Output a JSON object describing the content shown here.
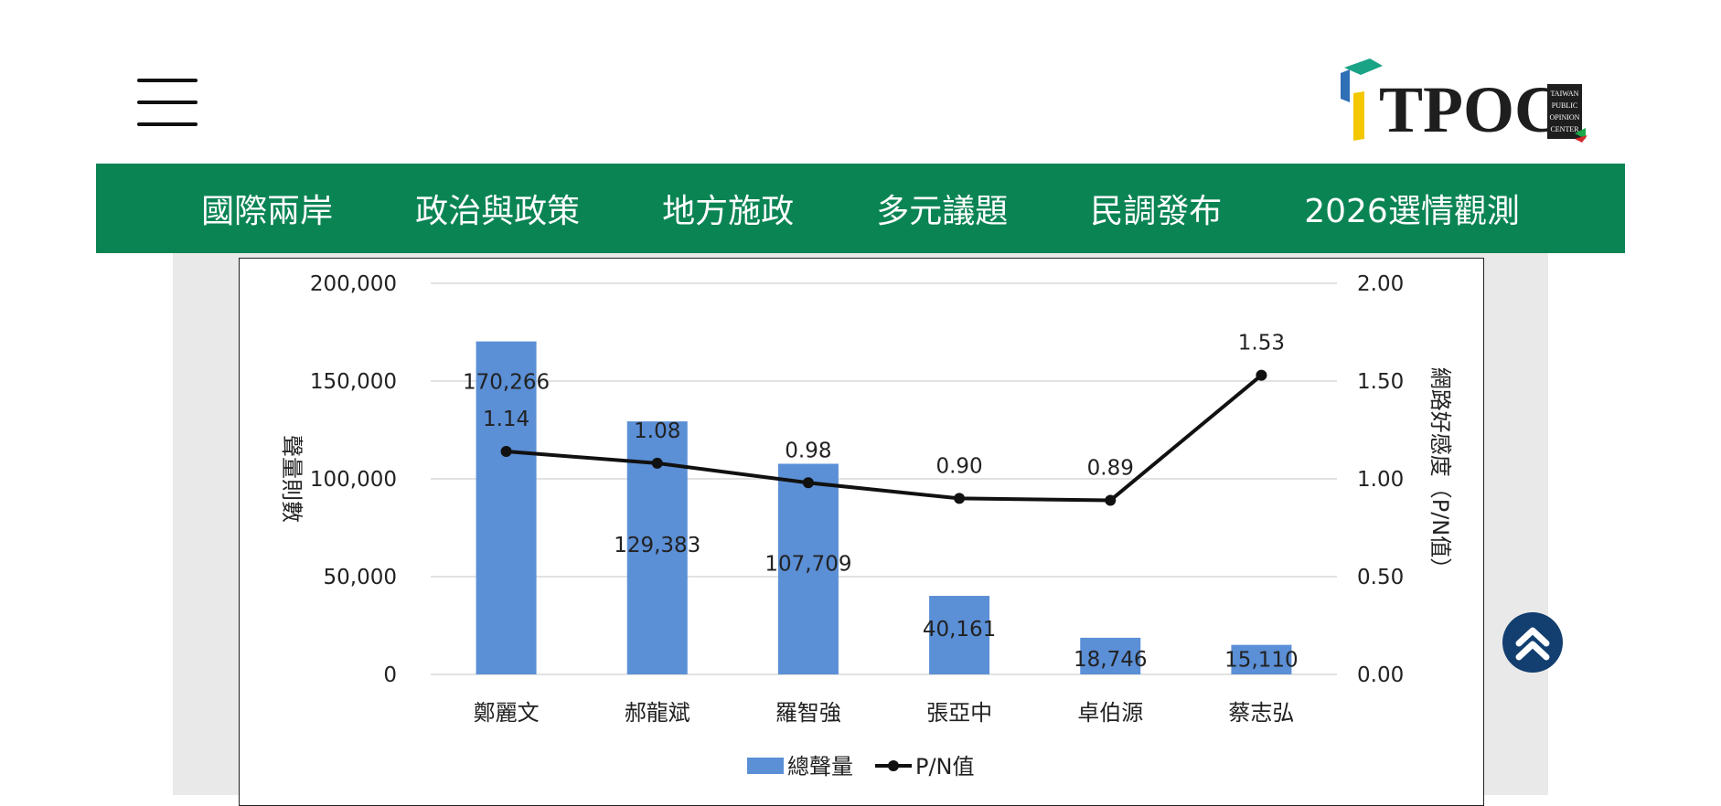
{
  "header": {
    "menu_icon": "hamburger-menu-icon",
    "logo": {
      "text": "TPOC",
      "sub": [
        "TAIWAN",
        "PUBLIC",
        "OPINION",
        "CENTER"
      ],
      "colors": {
        "teal": "#1aa385",
        "yellow": "#f3c800",
        "blue": "#2f6fb5",
        "green": "#1aa74a",
        "red": "#d4262d",
        "dark": "#1e1e1e"
      }
    }
  },
  "nav": {
    "background": "#0b8454",
    "items": [
      "國際兩岸",
      "政治與政策",
      "地方施政",
      "多元議題",
      "民調發布",
      "2026選情觀測"
    ]
  },
  "back_to_top_icon": "double-chevron-up-icon",
  "chart_data": {
    "type": "bar",
    "categories": [
      "鄭麗文",
      "郝龍斌",
      "羅智強",
      "張亞中",
      "卓伯源",
      "蔡志弘"
    ],
    "series": [
      {
        "name": "總聲量",
        "type": "bar",
        "axis": "left",
        "color": "#5b8fd6",
        "values": [
          170266,
          129383,
          107709,
          40161,
          18746,
          15110
        ],
        "labels": [
          "170,266",
          "129,383",
          "107,709",
          "40,161",
          "18,746",
          "15,110"
        ]
      },
      {
        "name": "P/N值",
        "type": "line",
        "axis": "right",
        "color": "#111111",
        "values": [
          1.14,
          1.08,
          0.98,
          0.9,
          0.89,
          1.53
        ],
        "labels": [
          "1.14",
          "1.08",
          "0.98",
          "0.90",
          "0.89",
          "1.53"
        ]
      }
    ],
    "ylabel": "聲量則數",
    "y2label": "網路好感度（P/N值）",
    "ylim": [
      0,
      200000
    ],
    "y2lim": [
      0,
      2
    ],
    "yticks": [
      "0",
      "50,000",
      "100,000",
      "150,000",
      "200,000"
    ],
    "y2ticks": [
      "0.00",
      "0.50",
      "1.00",
      "1.50",
      "2.00"
    ],
    "grid": true,
    "legend": "bottom"
  }
}
